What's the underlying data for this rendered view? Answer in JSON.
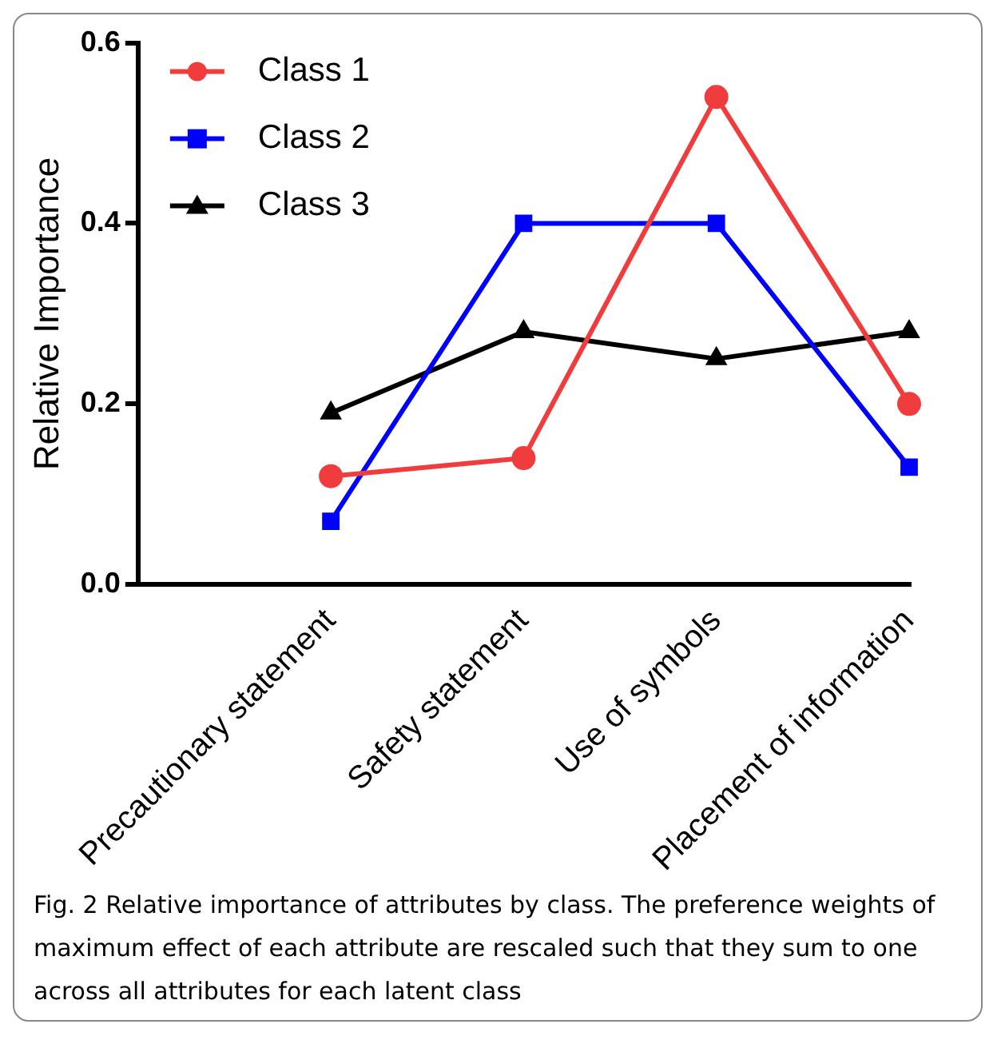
{
  "chart_data": {
    "type": "line",
    "ylabel": "Relative Importance",
    "categories": [
      "Precautionary statement",
      "Safety statement",
      "Use of symbols",
      "Placement of information"
    ],
    "series": [
      {
        "name": "Class 1",
        "color": "#f03c3c",
        "marker": "circle",
        "values": [
          0.12,
          0.14,
          0.54,
          0.2
        ]
      },
      {
        "name": "Class 2",
        "color": "#0000ff",
        "marker": "square",
        "values": [
          0.07,
          0.4,
          0.4,
          0.13
        ]
      },
      {
        "name": "Class 3",
        "color": "#000000",
        "marker": "triangle",
        "values": [
          0.19,
          0.28,
          0.25,
          0.28
        ]
      }
    ],
    "ylim": [
      0,
      0.6
    ],
    "yticks": [
      {
        "value": 0,
        "label": "0.0"
      },
      {
        "value": 0.2,
        "label": "0.2"
      },
      {
        "value": 0.4,
        "label": "0.4"
      },
      {
        "value": 0.6,
        "label": "0.6"
      }
    ],
    "grid": false,
    "legend": "top left",
    "annotations": [
      "Fig. 2  Relative importance of attributes by class. The preference weights of maximum effect of each attribute are rescaled such that they sum to one across all attributes for each latent class"
    ]
  }
}
